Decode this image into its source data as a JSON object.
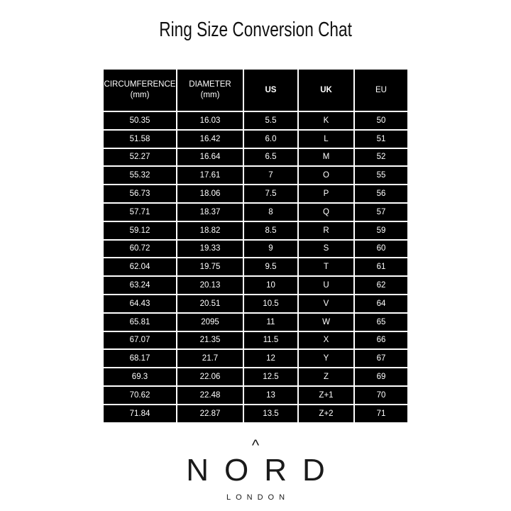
{
  "title": "Ring Size Conversion Chat",
  "table": {
    "headers": [
      {
        "line1": "CIRCUMFERENCE",
        "line2": "(mm)"
      },
      {
        "line1": "DIAMETER",
        "line2": "(mm)"
      },
      {
        "line1": "US",
        "line2": ""
      },
      {
        "line1": "UK",
        "line2": ""
      },
      {
        "line1": "EU",
        "line2": ""
      }
    ],
    "rows": [
      [
        "50.35",
        "16.03",
        "5.5",
        "K",
        "50"
      ],
      [
        "51.58",
        "16.42",
        "6.0",
        "L",
        "51"
      ],
      [
        "52.27",
        "16.64",
        "6.5",
        "M",
        "52"
      ],
      [
        "55.32",
        "17.61",
        "7",
        "O",
        "55"
      ],
      [
        "56.73",
        "18.06",
        "7.5",
        "P",
        "56"
      ],
      [
        "57.71",
        "18.37",
        "8",
        "Q",
        "57"
      ],
      [
        "59.12",
        "18.82",
        "8.5",
        "R",
        "59"
      ],
      [
        "60.72",
        "19.33",
        "9",
        "S",
        "60"
      ],
      [
        "62.04",
        "19.75",
        "9.5",
        "T",
        "61"
      ],
      [
        "63.24",
        "20.13",
        "10",
        "U",
        "62"
      ],
      [
        "64.43",
        "20.51",
        "10.5",
        "V",
        "64"
      ],
      [
        "65.81",
        "2095",
        "11",
        "W",
        "65"
      ],
      [
        "67.07",
        "21.35",
        "11.5",
        "X",
        "66"
      ],
      [
        "68.17",
        "21.7",
        "12",
        "Y",
        "67"
      ],
      [
        "69.3",
        "22.06",
        "12.5",
        "Z",
        "69"
      ],
      [
        "70.62",
        "22.48",
        "13",
        "Z+1",
        "70"
      ],
      [
        "71.84",
        "22.87",
        "13.5",
        "Z+2",
        "71"
      ]
    ]
  },
  "logo": {
    "brand": "NORD",
    "sub": "LONDON"
  }
}
